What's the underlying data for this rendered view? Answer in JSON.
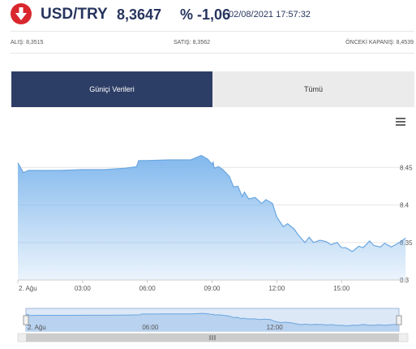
{
  "quote": {
    "symbol": "USD/TRY",
    "price": "8,3647",
    "change": "% -1,06",
    "timestamp": "02/08/2021 17:57:32",
    "direction_icon": "arrow-down-icon",
    "direction_color": "#d9272e"
  },
  "stats": {
    "bid": "ALIŞ: 8,3515",
    "ask": "SATIŞ: 8,3562",
    "prev_close": "ÖNCEKİ KAPANIŞ: 8,4539"
  },
  "tabs": {
    "intraday": "Güniçi Verileri",
    "all": "Tümü"
  },
  "chart_data": {
    "type": "area",
    "title": "",
    "xlabel": "",
    "ylabel": "",
    "ylim": [
      8.3,
      8.5
    ],
    "y_ticks": [
      "8.45",
      "8.4",
      "8.35",
      "8.3"
    ],
    "x_ticks": [
      "2. Ağu",
      "03:00",
      "06:00",
      "09:00",
      "12:00",
      "15:00"
    ],
    "navigator_ticks": [
      "2. Ağu",
      "06:00",
      "12:00"
    ],
    "color": "#7cb5ec",
    "x": [
      0,
      0.1,
      0.25,
      0.5,
      1,
      2,
      3,
      4,
      5,
      5.5,
      5.6,
      6,
      7,
      8,
      8.5,
      8.8,
      9,
      9.05,
      9.1,
      9.3,
      9.5,
      9.8,
      10,
      10.2,
      10.4,
      10.5,
      10.7,
      11,
      11.3,
      11.5,
      11.8,
      12,
      12.3,
      12.5,
      12.8,
      13,
      13.3,
      13.5,
      13.7,
      14,
      14.3,
      14.5,
      14.8,
      15,
      15.2,
      15.5,
      15.8,
      16,
      16.3,
      16.5,
      16.8,
      17,
      17.3,
      17.5,
      17.8,
      17.97
    ],
    "y": [
      8.456,
      8.451,
      8.443,
      8.446,
      8.446,
      8.446,
      8.447,
      8.447,
      8.449,
      8.451,
      8.459,
      8.459,
      8.46,
      8.46,
      8.466,
      8.461,
      8.454,
      8.457,
      8.449,
      8.451,
      8.447,
      8.438,
      8.424,
      8.425,
      8.411,
      8.417,
      8.408,
      8.41,
      8.402,
      8.407,
      8.402,
      8.384,
      8.371,
      8.375,
      8.368,
      8.36,
      8.35,
      8.357,
      8.35,
      8.353,
      8.351,
      8.347,
      8.35,
      8.343,
      8.343,
      8.338,
      8.345,
      8.343,
      8.352,
      8.346,
      8.344,
      8.349,
      8.344,
      8.347,
      8.352,
      8.356
    ]
  }
}
